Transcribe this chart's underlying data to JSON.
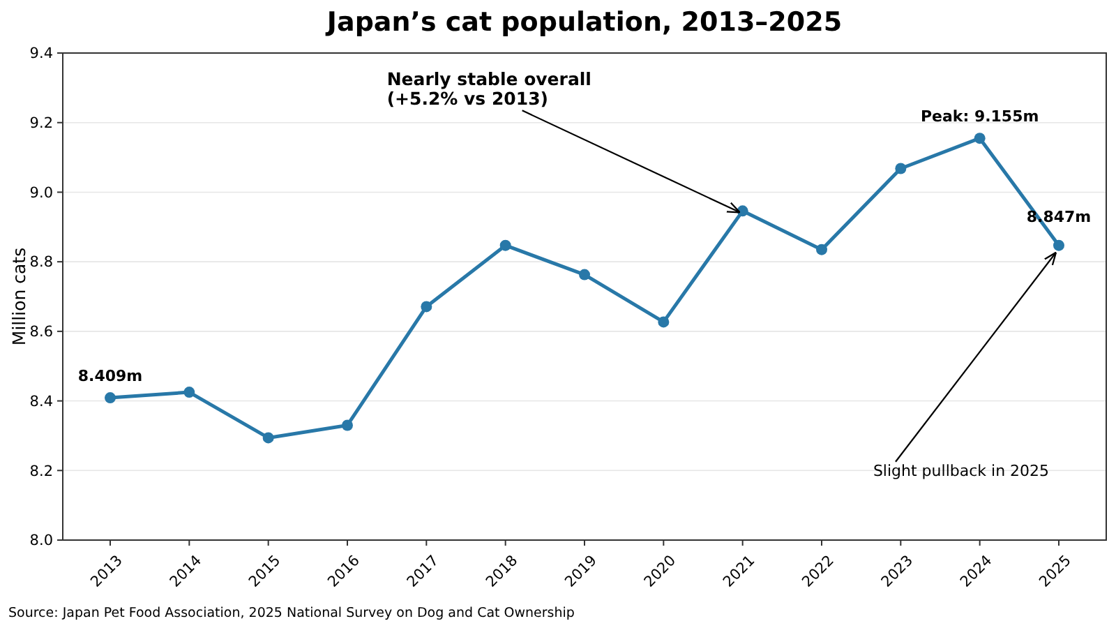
{
  "chart_data": {
    "type": "line",
    "title": "Japan’s cat population, 2013–2025",
    "ylabel": "Million cats",
    "categories": [
      "2013",
      "2014",
      "2015",
      "2016",
      "2017",
      "2018",
      "2019",
      "2020",
      "2021",
      "2022",
      "2023",
      "2024",
      "2025"
    ],
    "series": [
      {
        "color": "#2878a8",
        "values": [
          8.409,
          8.425,
          8.294,
          8.33,
          8.671,
          8.847,
          8.763,
          8.627,
          8.946,
          8.835,
          9.068,
          9.155,
          8.847
        ]
      }
    ],
    "ylim": [
      8.0,
      9.4
    ],
    "yticks": [
      {
        "value": 8,
        "label": "8.0"
      },
      {
        "value": 8.2,
        "label": "8.2"
      },
      {
        "value": 8.4,
        "label": "8.4"
      },
      {
        "value": 8.6,
        "label": "8.6"
      },
      {
        "value": 8.8,
        "label": "8.8"
      },
      {
        "value": 9,
        "label": "9.0"
      },
      {
        "value": 9.2,
        "label": "9.2"
      },
      {
        "value": 9.4,
        "label": "9.4"
      }
    ],
    "grid": "y",
    "marker": "circle",
    "line_style": "solid",
    "annotations": [
      {
        "text": "8.409m",
        "x": "2013",
        "y": 8.409
      },
      {
        "text": "Peak: 9.155m",
        "x": "2024",
        "y": 9.155
      },
      {
        "text": "8.847m",
        "x": "2025",
        "y": 8.847
      },
      {
        "text": "Nearly stable overall\n(+5.2% vs 2013)",
        "x": "2021",
        "y": 8.946
      },
      {
        "text": "Slight pullback in 2025",
        "x": "2025",
        "y": 8.847
      },
      "Source: Japan Pet Food Association, 2025 National Survey on Dog and Cat Ownership"
    ]
  }
}
